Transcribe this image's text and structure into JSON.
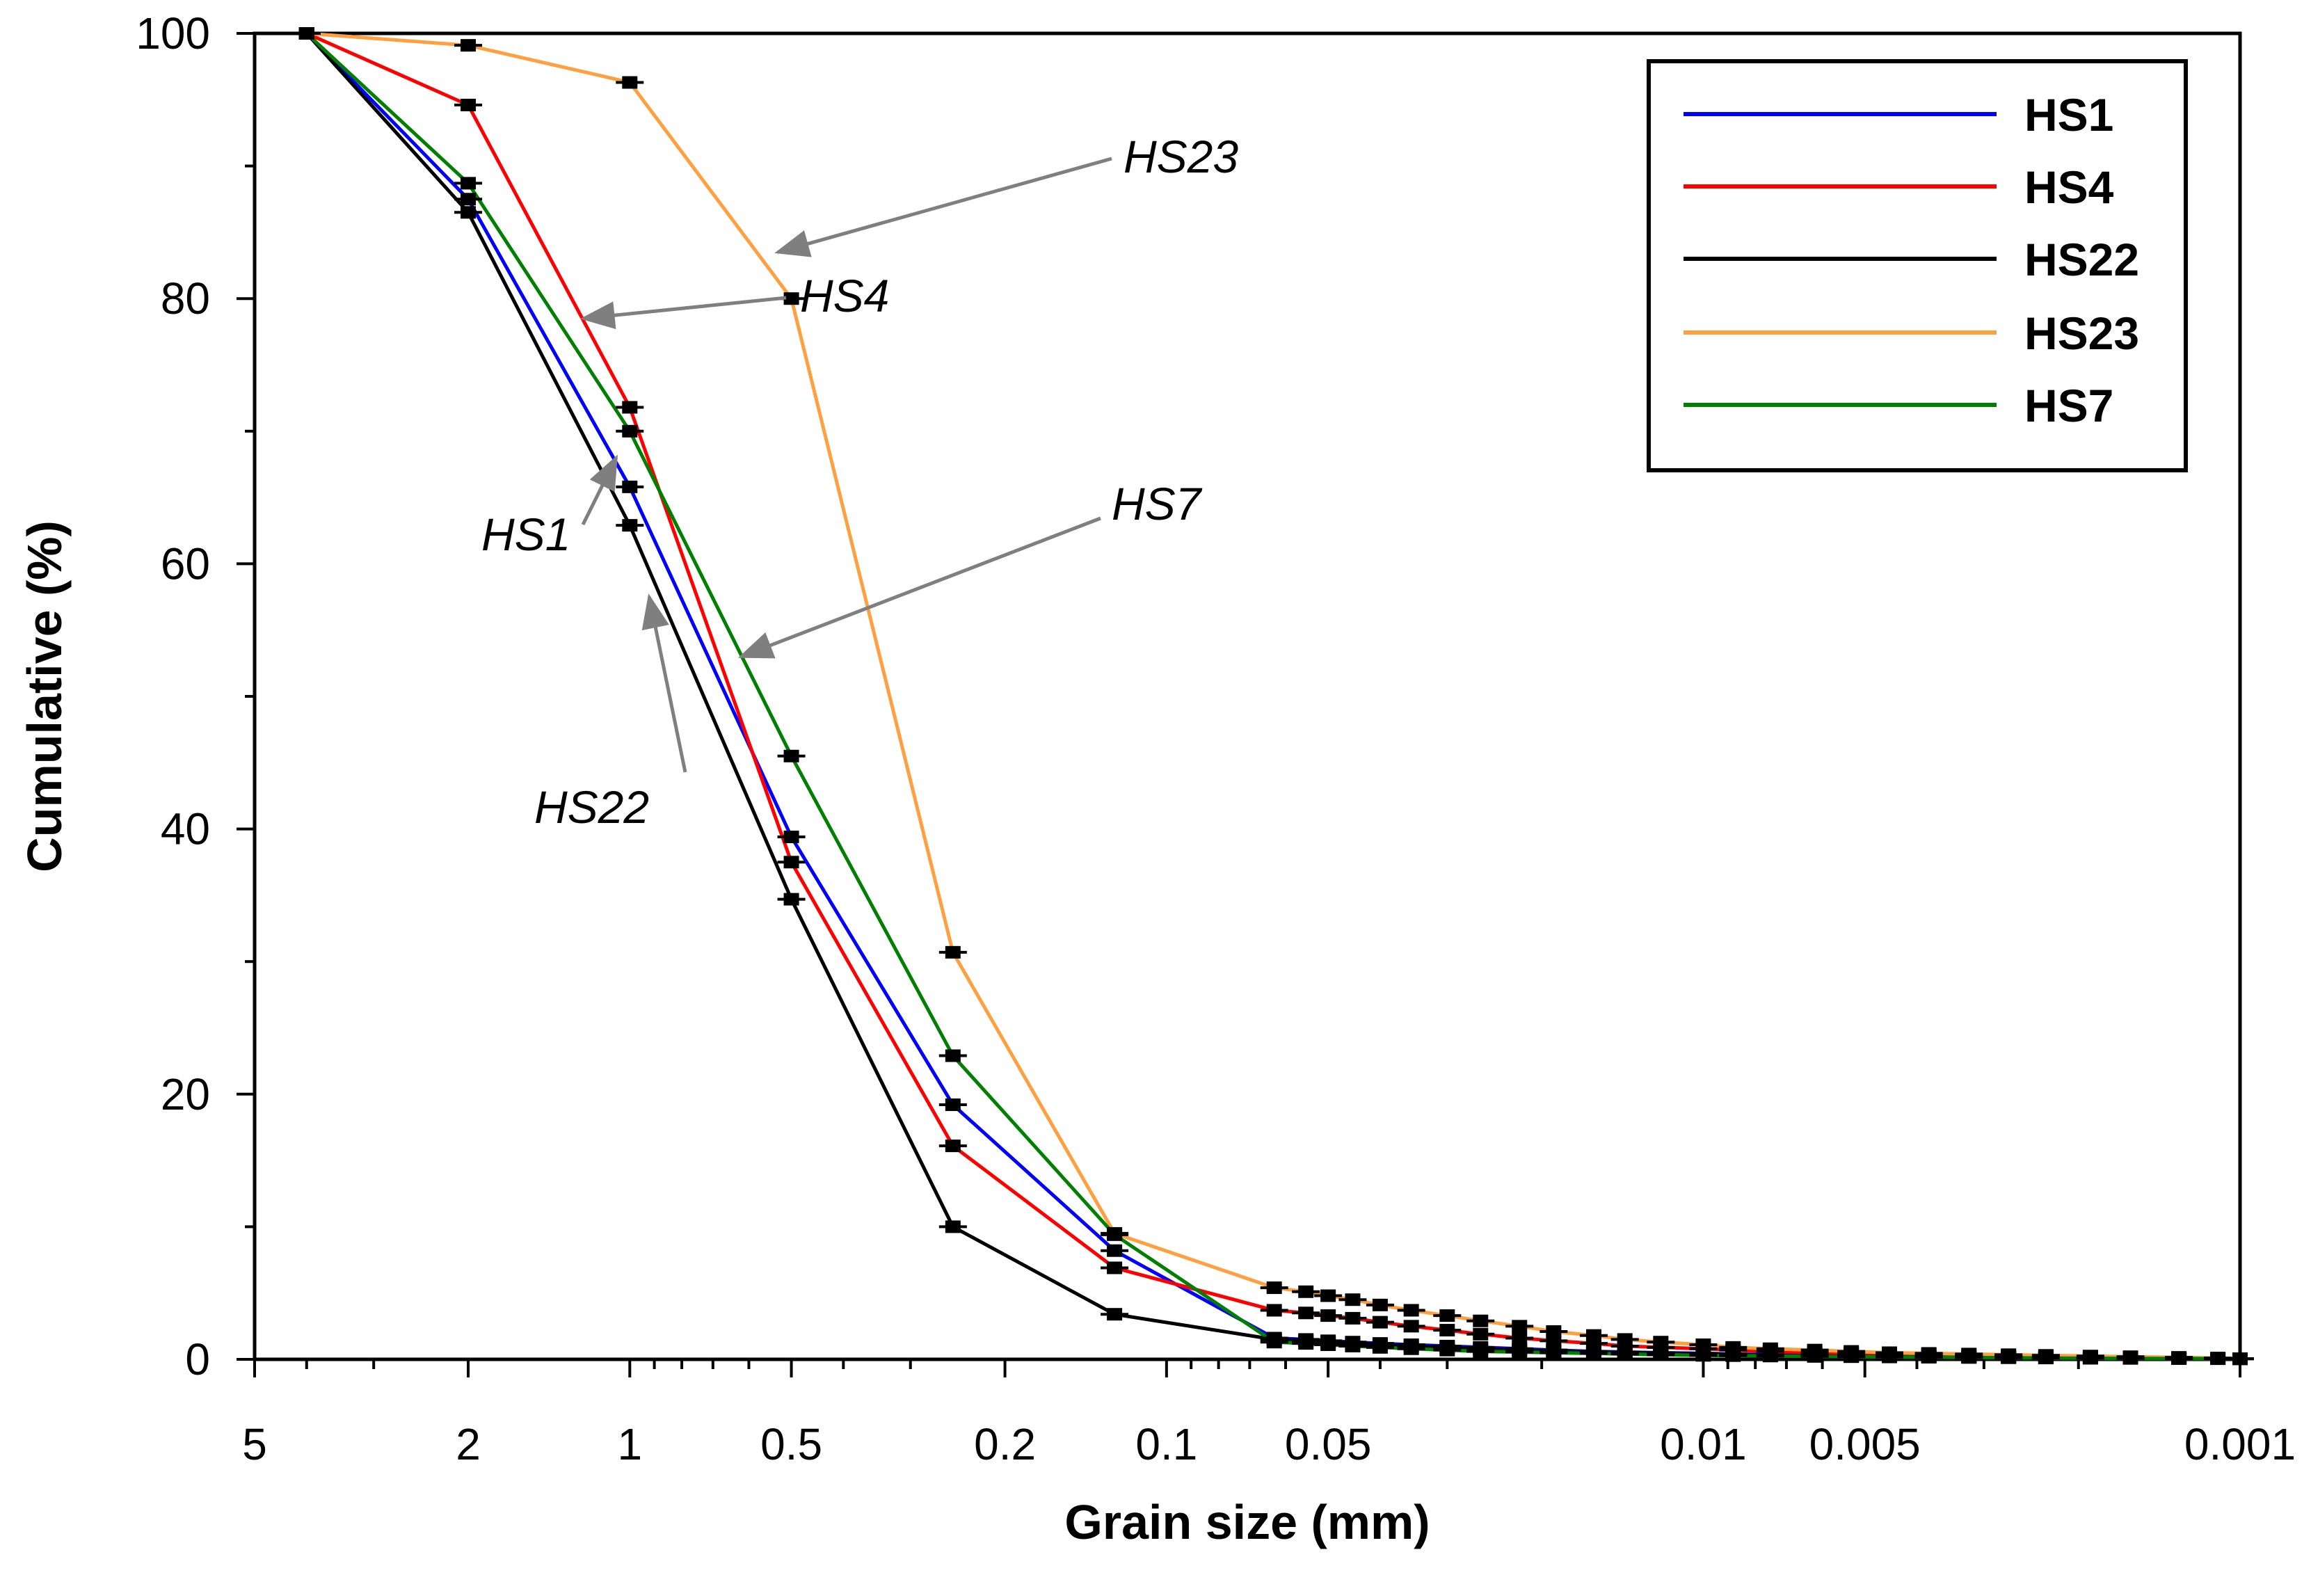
{
  "chart_data": {
    "type": "line",
    "title": "",
    "xlabel": "Grain size (mm)",
    "ylabel": "Cumulative (%)",
    "x_scale": "log",
    "x_reversed": true,
    "xlim": [
      5,
      0.001
    ],
    "ylim": [
      0,
      100
    ],
    "x_ticks": [
      5,
      2,
      1,
      0.5,
      0.2,
      0.1,
      0.05,
      0.01,
      0.005,
      0.001
    ],
    "x_tick_labels": [
      "5",
      "2",
      "1",
      "0.5",
      "0.2",
      "0.1",
      "0.05",
      "0.01",
      "0.005",
      "0.001"
    ],
    "y_ticks": [
      0,
      20,
      40,
      60,
      80,
      100
    ],
    "y_tick_labels": [
      "0",
      "20",
      "40",
      "60",
      "80",
      "100"
    ],
    "grid": false,
    "legend_position": "top-right",
    "markers": "black error-bar points",
    "series": [
      {
        "name": "HS1",
        "color": "#0000ff",
        "x": [
          4,
          2,
          1,
          0.5,
          0.25,
          0.125,
          0.063,
          0.055,
          0.05,
          0.045,
          0.04,
          0.035,
          0.03,
          0.026,
          0.022,
          0.019,
          0.016,
          0.014,
          0.012,
          0.01,
          0.0088,
          0.0075,
          0.0062,
          0.0053,
          0.0045,
          0.0038,
          0.0032,
          0.0027,
          0.0023,
          0.0019,
          0.0016,
          0.0013,
          0.0011,
          0.001
        ],
        "values": [
          100,
          87.5,
          65.8,
          39.4,
          19.2,
          8.2,
          1.6,
          1.5,
          1.4,
          1.3,
          1.2,
          1.1,
          1.0,
          0.9,
          0.8,
          0.7,
          0.6,
          0.55,
          0.5,
          0.45,
          0.4,
          0.35,
          0.3,
          0.25,
          0.22,
          0.2,
          0.18,
          0.16,
          0.14,
          0.12,
          0.1,
          0.08,
          0.06,
          0.05
        ]
      },
      {
        "name": "HS4",
        "color": "#ff0000",
        "x": [
          4,
          2,
          1,
          0.5,
          0.25,
          0.125,
          0.063,
          0.055,
          0.05,
          0.045,
          0.04,
          0.035,
          0.03,
          0.026,
          0.022,
          0.019,
          0.016,
          0.014,
          0.012,
          0.01,
          0.0088,
          0.0075,
          0.0062,
          0.0053,
          0.0045,
          0.0038,
          0.0032,
          0.0027,
          0.0023,
          0.0019,
          0.0016,
          0.0013,
          0.0011,
          0.001
        ],
        "values": [
          100,
          94.6,
          71.8,
          37.5,
          16.1,
          6.9,
          3.7,
          3.5,
          3.3,
          3.1,
          2.8,
          2.5,
          2.2,
          1.9,
          1.6,
          1.4,
          1.2,
          1.0,
          0.9,
          0.8,
          0.7,
          0.6,
          0.5,
          0.45,
          0.4,
          0.35,
          0.3,
          0.25,
          0.2,
          0.15,
          0.12,
          0.1,
          0.08,
          0.05
        ]
      },
      {
        "name": "HS22",
        "color": "#000000",
        "x": [
          4,
          2,
          1,
          0.5,
          0.25,
          0.125,
          0.063,
          0.055,
          0.05,
          0.045,
          0.04,
          0.035,
          0.03,
          0.026,
          0.022,
          0.019,
          0.016,
          0.014,
          0.012,
          0.01,
          0.0088,
          0.0075,
          0.0062,
          0.0053,
          0.0045,
          0.0038,
          0.0032,
          0.0027,
          0.0023,
          0.0019,
          0.0016,
          0.0013,
          0.0011,
          0.001
        ],
        "values": [
          100,
          86.5,
          62.9,
          34.7,
          10.0,
          3.4,
          1.5,
          1.4,
          1.3,
          1.2,
          1.1,
          1.0,
          0.9,
          0.8,
          0.7,
          0.6,
          0.55,
          0.5,
          0.45,
          0.4,
          0.35,
          0.3,
          0.25,
          0.22,
          0.2,
          0.18,
          0.16,
          0.14,
          0.12,
          0.1,
          0.08,
          0.06,
          0.05,
          0.04
        ]
      },
      {
        "name": "HS23",
        "color": "#ffa040",
        "x": [
          4,
          2,
          1,
          0.5,
          0.25,
          0.125,
          0.063,
          0.055,
          0.05,
          0.045,
          0.04,
          0.035,
          0.03,
          0.026,
          0.022,
          0.019,
          0.016,
          0.014,
          0.012,
          0.01,
          0.0088,
          0.0075,
          0.0062,
          0.0053,
          0.0045,
          0.0038,
          0.0032,
          0.0027,
          0.0023,
          0.0019,
          0.0016,
          0.0013,
          0.0011,
          0.001
        ],
        "values": [
          100,
          99.1,
          96.3,
          80.0,
          30.7,
          9.5,
          5.4,
          5.1,
          4.8,
          4.5,
          4.1,
          3.7,
          3.3,
          2.9,
          2.5,
          2.1,
          1.8,
          1.5,
          1.3,
          1.1,
          0.9,
          0.8,
          0.7,
          0.6,
          0.5,
          0.45,
          0.4,
          0.35,
          0.3,
          0.25,
          0.2,
          0.15,
          0.1,
          0.05
        ]
      },
      {
        "name": "HS7",
        "color": "#008000",
        "x": [
          4,
          2,
          1,
          0.5,
          0.25,
          0.125,
          0.063,
          0.055,
          0.05,
          0.045,
          0.04,
          0.035,
          0.03,
          0.026,
          0.022,
          0.019,
          0.016,
          0.014,
          0.012,
          0.01,
          0.0088,
          0.0075,
          0.0062,
          0.0053,
          0.0045,
          0.0038,
          0.0032,
          0.0027,
          0.0023,
          0.0019,
          0.0016,
          0.0013,
          0.0011,
          0.001
        ],
        "values": [
          100,
          88.7,
          70.0,
          45.5,
          22.9,
          9.4,
          1.3,
          1.2,
          1.1,
          1.0,
          0.9,
          0.8,
          0.7,
          0.6,
          0.55,
          0.5,
          0.45,
          0.4,
          0.35,
          0.3,
          0.28,
          0.25,
          0.22,
          0.2,
          0.18,
          0.16,
          0.14,
          0.12,
          0.1,
          0.08,
          0.07,
          0.06,
          0.05,
          0.04
        ]
      }
    ],
    "annotations": [
      {
        "text": "HS23",
        "target_series": "HS23",
        "target_x": 0.53,
        "target_y": 83.5
      },
      {
        "text": "HS4",
        "target_series": "HS4",
        "target_x": 1.22,
        "target_y": 78.5
      },
      {
        "text": "HS1",
        "target_series": "HS1",
        "target_x": 1.06,
        "target_y": 68.0
      },
      {
        "text": "HS7",
        "target_series": "HS7",
        "target_x": 0.62,
        "target_y": 53.0
      },
      {
        "text": "HS22",
        "target_series": "HS22",
        "target_x": 0.92,
        "target_y": 57.5
      }
    ]
  }
}
